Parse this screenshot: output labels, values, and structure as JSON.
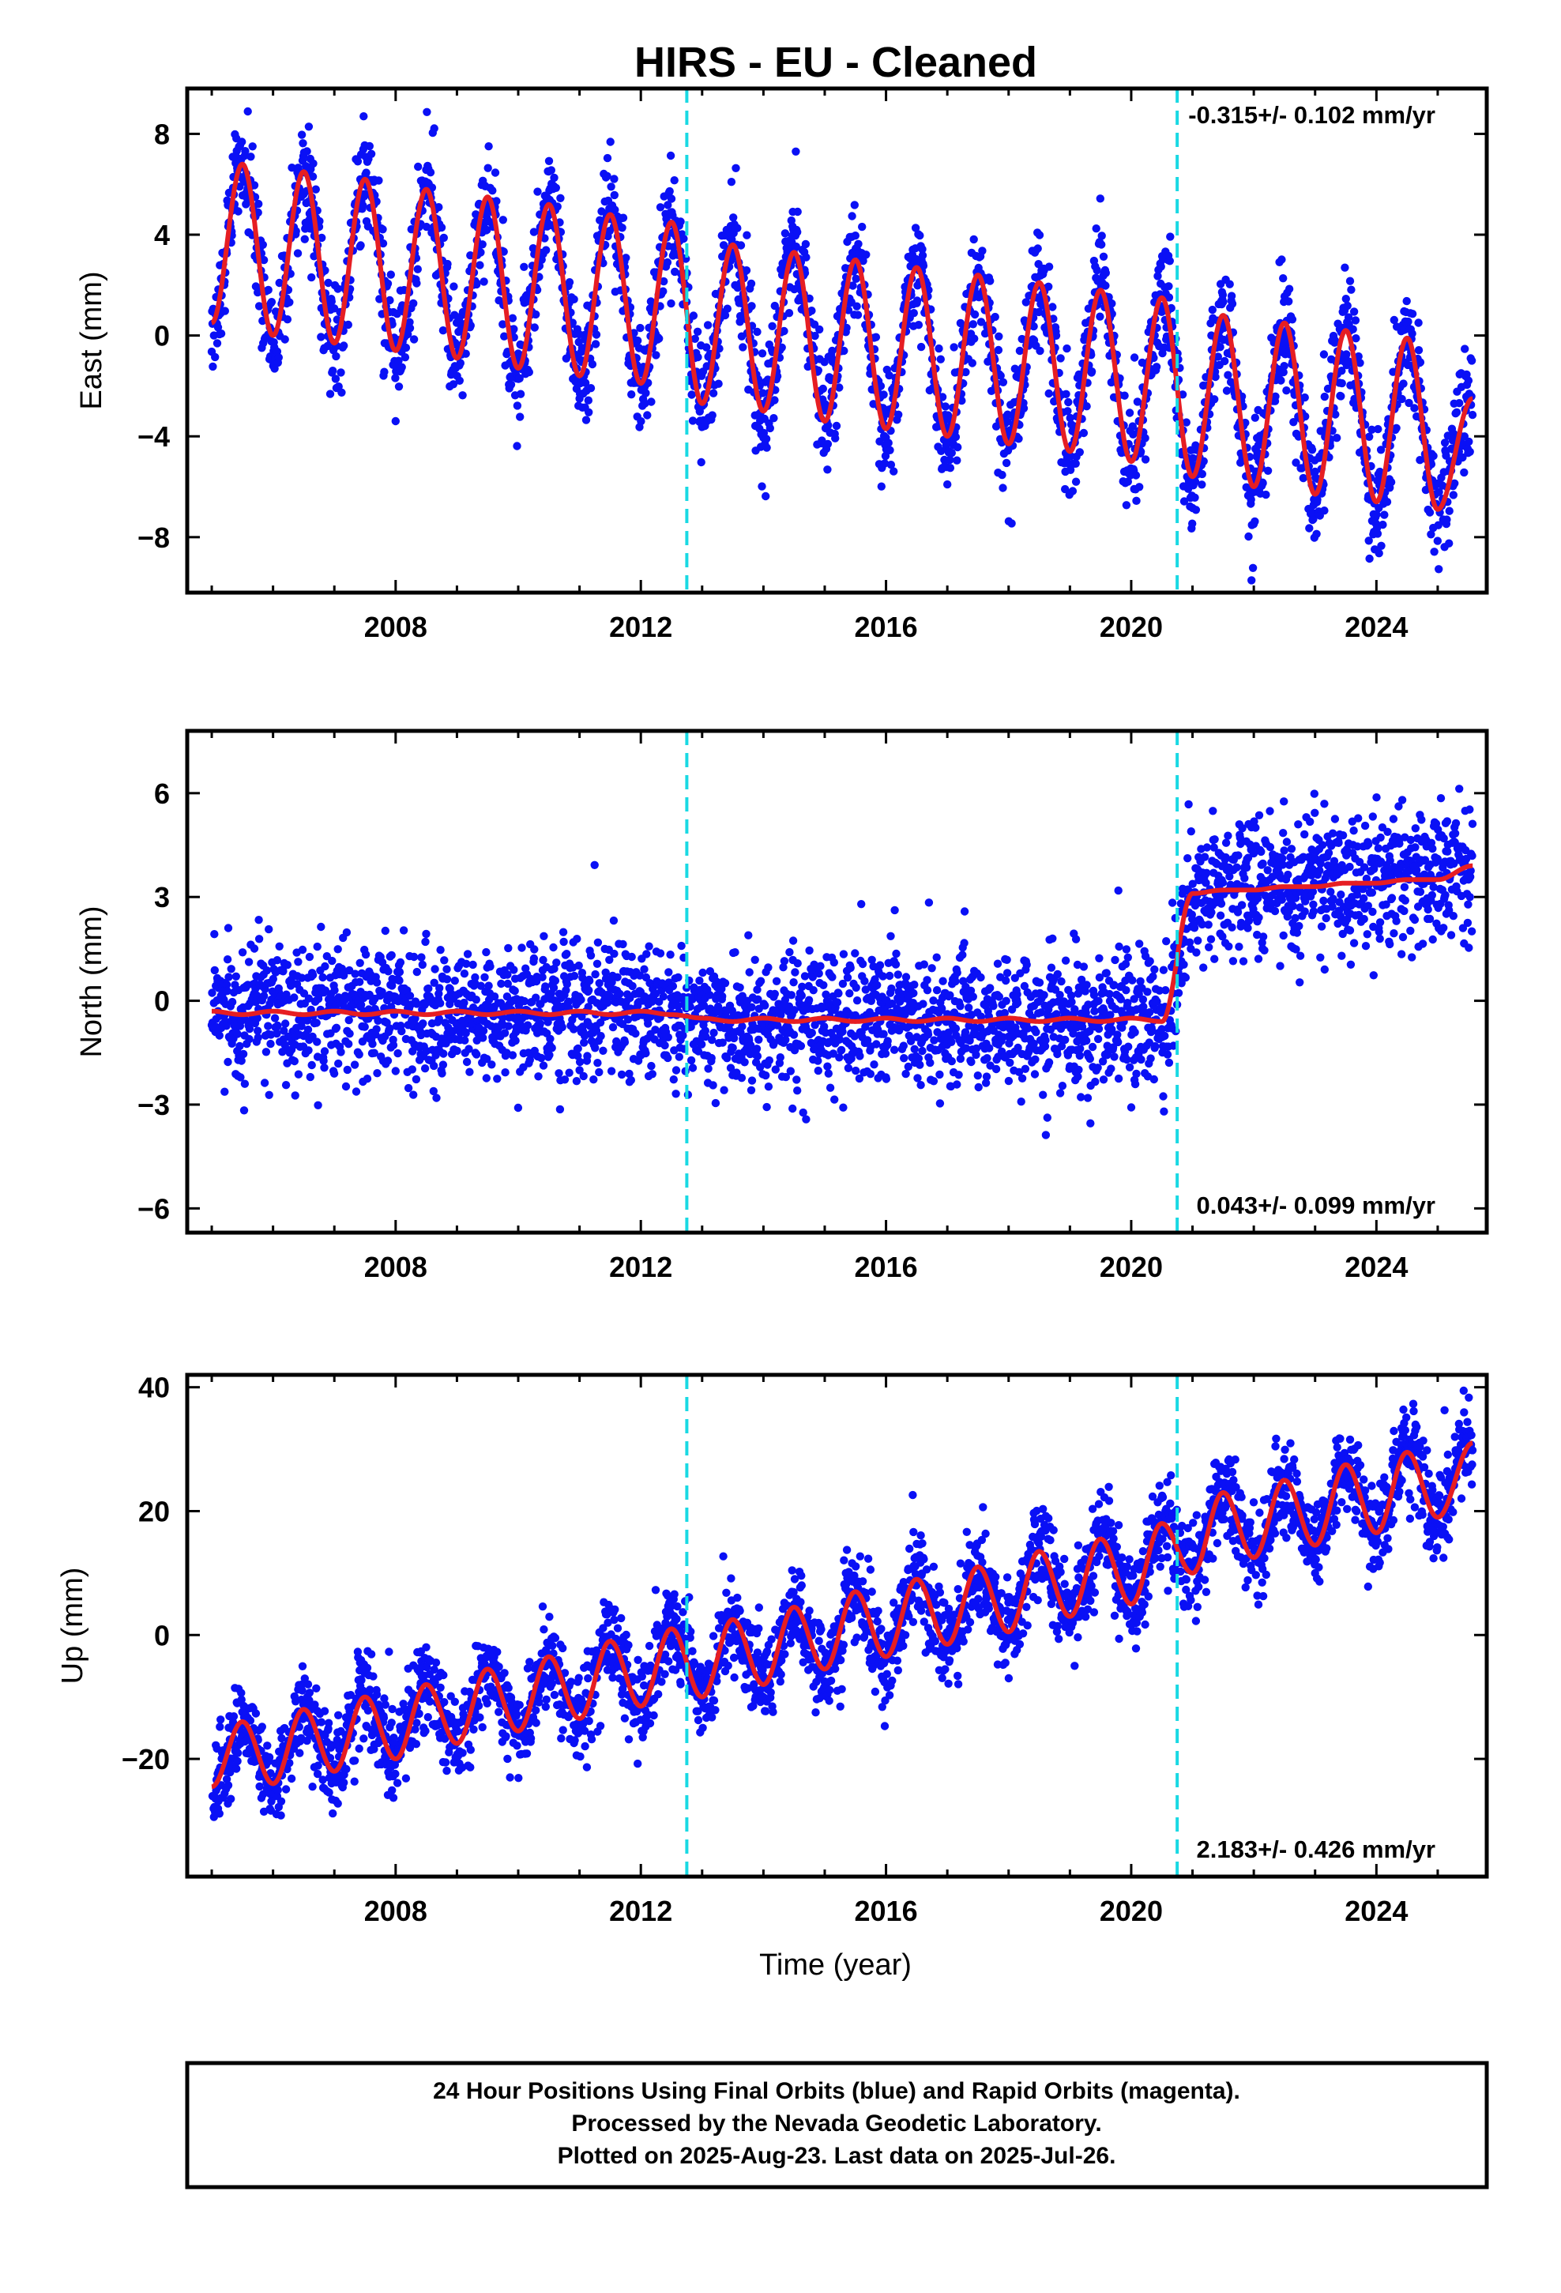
{
  "title": "HIRS  - EU - Cleaned",
  "colors": {
    "points": "#0a10f5",
    "model": "#e61e23",
    "steps": "#19d9e3",
    "frame": "#000000"
  },
  "chart_data": [
    {
      "type": "scatter",
      "name": "east",
      "title": "",
      "xlabel": "",
      "ylabel": "East (mm)",
      "xlim": [
        2004.6,
        2025.8
      ],
      "ylim": [
        -10.2,
        9.8
      ],
      "x_ticks": [
        2008,
        2012,
        2016,
        2020,
        2024
      ],
      "y_ticks": [
        -8,
        -4,
        0,
        4,
        8
      ],
      "rate": "-0.315+/- 0.102 mm/yr",
      "rate_position": "top-right",
      "step_epochs": [
        2012.75,
        2020.75
      ],
      "data_span": [
        2005.0,
        2025.57
      ],
      "model_samples": [
        [
          2005.0,
          0.5
        ],
        [
          2005.5,
          6.8
        ],
        [
          2006.0,
          0.0
        ],
        [
          2006.5,
          6.5
        ],
        [
          2007.0,
          -0.3
        ],
        [
          2007.5,
          6.2
        ],
        [
          2008.0,
          -0.6
        ],
        [
          2008.5,
          5.8
        ],
        [
          2009.0,
          -0.9
        ],
        [
          2009.5,
          5.5
        ],
        [
          2010.0,
          -1.3
        ],
        [
          2010.5,
          5.2
        ],
        [
          2011.0,
          -1.6
        ],
        [
          2011.5,
          4.8
        ],
        [
          2012.0,
          -1.9
        ],
        [
          2012.5,
          4.5
        ],
        [
          2013.0,
          -2.7
        ],
        [
          2013.5,
          3.6
        ],
        [
          2014.0,
          -3.0
        ],
        [
          2014.5,
          3.3
        ],
        [
          2015.0,
          -3.4
        ],
        [
          2015.5,
          3.0
        ],
        [
          2016.0,
          -3.7
        ],
        [
          2016.5,
          2.7
        ],
        [
          2017.0,
          -4.0
        ],
        [
          2017.5,
          2.4
        ],
        [
          2018.0,
          -4.3
        ],
        [
          2018.5,
          2.1
        ],
        [
          2019.0,
          -4.6
        ],
        [
          2019.5,
          1.8
        ],
        [
          2020.0,
          -5.0
        ],
        [
          2020.5,
          1.5
        ],
        [
          2021.0,
          -5.6
        ],
        [
          2021.5,
          0.8
        ],
        [
          2022.0,
          -6.0
        ],
        [
          2022.5,
          0.5
        ],
        [
          2023.0,
          -6.3
        ],
        [
          2023.5,
          0.2
        ],
        [
          2024.0,
          -6.6
        ],
        [
          2024.5,
          -0.1
        ],
        [
          2025.0,
          -6.9
        ],
        [
          2025.57,
          -2.5
        ]
      ]
    },
    {
      "type": "scatter",
      "name": "north",
      "title": "",
      "xlabel": "",
      "ylabel": "North (mm)",
      "xlim": [
        2004.6,
        2025.8
      ],
      "ylim": [
        -6.7,
        7.8
      ],
      "x_ticks": [
        2008,
        2012,
        2016,
        2020,
        2024
      ],
      "y_ticks": [
        -6,
        -3,
        0,
        3,
        6
      ],
      "rate": "0.043+/- 0.099 mm/yr",
      "rate_position": "bottom-right",
      "step_epochs": [
        2012.75,
        2020.75
      ],
      "data_span": [
        2005.0,
        2025.57
      ],
      "model_samples": [
        [
          2005.0,
          -0.3
        ],
        [
          2005.5,
          -0.4
        ],
        [
          2006.0,
          -0.3
        ],
        [
          2006.5,
          -0.4
        ],
        [
          2007.0,
          -0.3
        ],
        [
          2007.5,
          -0.4
        ],
        [
          2008.0,
          -0.3
        ],
        [
          2008.5,
          -0.4
        ],
        [
          2009.0,
          -0.3
        ],
        [
          2009.5,
          -0.4
        ],
        [
          2010.0,
          -0.3
        ],
        [
          2010.5,
          -0.4
        ],
        [
          2011.0,
          -0.3
        ],
        [
          2011.5,
          -0.4
        ],
        [
          2012.0,
          -0.3
        ],
        [
          2012.5,
          -0.4
        ],
        [
          2013.0,
          -0.5
        ],
        [
          2013.5,
          -0.6
        ],
        [
          2014.0,
          -0.5
        ],
        [
          2014.5,
          -0.6
        ],
        [
          2015.0,
          -0.5
        ],
        [
          2015.5,
          -0.6
        ],
        [
          2016.0,
          -0.5
        ],
        [
          2016.5,
          -0.6
        ],
        [
          2017.0,
          -0.5
        ],
        [
          2017.5,
          -0.6
        ],
        [
          2018.0,
          -0.5
        ],
        [
          2018.5,
          -0.6
        ],
        [
          2019.0,
          -0.5
        ],
        [
          2019.5,
          -0.6
        ],
        [
          2020.0,
          -0.5
        ],
        [
          2020.5,
          -0.6
        ],
        [
          2021.0,
          3.1
        ],
        [
          2021.5,
          3.2
        ],
        [
          2022.0,
          3.2
        ],
        [
          2022.5,
          3.3
        ],
        [
          2023.0,
          3.3
        ],
        [
          2023.5,
          3.4
        ],
        [
          2024.0,
          3.4
        ],
        [
          2024.5,
          3.5
        ],
        [
          2025.0,
          3.5
        ],
        [
          2025.57,
          3.9
        ]
      ]
    },
    {
      "type": "scatter",
      "name": "up",
      "title": "",
      "xlabel": "Time (year)",
      "ylabel": "Up (mm)",
      "xlim": [
        2004.6,
        2025.8
      ],
      "ylim": [
        -39,
        42
      ],
      "x_ticks": [
        2008,
        2012,
        2016,
        2020,
        2024
      ],
      "y_ticks": [
        -20,
        0,
        20,
        40
      ],
      "rate": "2.183+/- 0.426 mm/yr",
      "rate_position": "bottom-right",
      "step_epochs": [
        2012.75,
        2020.75
      ],
      "data_span": [
        2005.0,
        2025.57
      ],
      "model_samples": [
        [
          2005.0,
          -24.5
        ],
        [
          2005.5,
          -14.0
        ],
        [
          2006.0,
          -24.0
        ],
        [
          2006.5,
          -12.0
        ],
        [
          2007.0,
          -22.0
        ],
        [
          2007.5,
          -10.0
        ],
        [
          2008.0,
          -20.0
        ],
        [
          2008.5,
          -8.0
        ],
        [
          2009.0,
          -17.5
        ],
        [
          2009.5,
          -5.5
        ],
        [
          2010.0,
          -15.5
        ],
        [
          2010.5,
          -3.5
        ],
        [
          2011.0,
          -13.5
        ],
        [
          2011.5,
          -1.0
        ],
        [
          2012.0,
          -11.5
        ],
        [
          2012.5,
          1.0
        ],
        [
          2013.0,
          -10.0
        ],
        [
          2013.5,
          2.5
        ],
        [
          2014.0,
          -8.0
        ],
        [
          2014.5,
          4.5
        ],
        [
          2015.0,
          -5.5
        ],
        [
          2015.5,
          7.0
        ],
        [
          2016.0,
          -3.5
        ],
        [
          2016.5,
          9.0
        ],
        [
          2017.0,
          -1.5
        ],
        [
          2017.5,
          11.0
        ],
        [
          2018.0,
          0.5
        ],
        [
          2018.5,
          13.5
        ],
        [
          2019.0,
          3.0
        ],
        [
          2019.5,
          15.5
        ],
        [
          2020.0,
          5.0
        ],
        [
          2020.5,
          18.0
        ],
        [
          2021.0,
          10.0
        ],
        [
          2021.5,
          23.0
        ],
        [
          2022.0,
          12.5
        ],
        [
          2022.5,
          25.0
        ],
        [
          2023.0,
          14.5
        ],
        [
          2023.5,
          27.5
        ],
        [
          2024.0,
          16.5
        ],
        [
          2024.5,
          29.5
        ],
        [
          2025.0,
          19.0
        ],
        [
          2025.57,
          31.0
        ]
      ]
    }
  ],
  "footer": {
    "line1": "24 Hour Positions Using Final Orbits (blue) and Rapid Orbits (magenta).",
    "line2": "Processed by the Nevada Geodetic Laboratory.",
    "line3": "Plotted on 2025-Aug-23. Last data on 2025-Jul-26."
  }
}
